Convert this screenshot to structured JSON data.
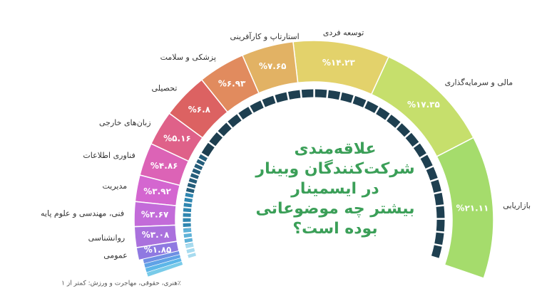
{
  "chart_data": {
    "type": "donut",
    "title_lines": [
      "علاقه‌مندی",
      "شرکت‌کنندگان وبینار",
      "در ایسمینار",
      "بیشتر چه موضوعاتی",
      "بوده است؟"
    ],
    "categories": [
      "بازاریابی",
      "مالی و سرمایه‌گذاری",
      "توسعه فردی",
      "استارتاپ و کارآفرینی",
      "پزشکی و سلامت",
      "تحصیلی",
      "زبان‌های خارجی",
      "فناوری اطلاعات",
      "مدیریت",
      "فنی، مهندسی و علوم پایه",
      "روانشناسی",
      "عمومی"
    ],
    "values": [
      21.11,
      17.35,
      14.23,
      7.65,
      6.93,
      6.8,
      5.16,
      4.86,
      3.92,
      3.67,
      3.08,
      1.85
    ],
    "value_labels": [
      "%۲۱.۱۱",
      "%۱۷.۳۵",
      "%۱۴.۲۳",
      "%۷.۶۵",
      "%۶.۹۳",
      "%۶.۸",
      "%۵.۱۶",
      "%۴.۸۶",
      "%۳.۹۲",
      "%۳.۶۷",
      "%۳.۰۸",
      "%۱.۸۵"
    ],
    "colors": [
      "#a5dc6c",
      "#c6df6c",
      "#e3d26b",
      "#e2b264",
      "#e18b5e",
      "#dc6262",
      "#df6189",
      "#dc63b6",
      "#d466d0",
      "#c36bd9",
      "#aa71dd",
      "#8f79e1"
    ],
    "note": "هنری، حقوقی، مهاجرت و ورزش: کمتر از ۱٪"
  }
}
